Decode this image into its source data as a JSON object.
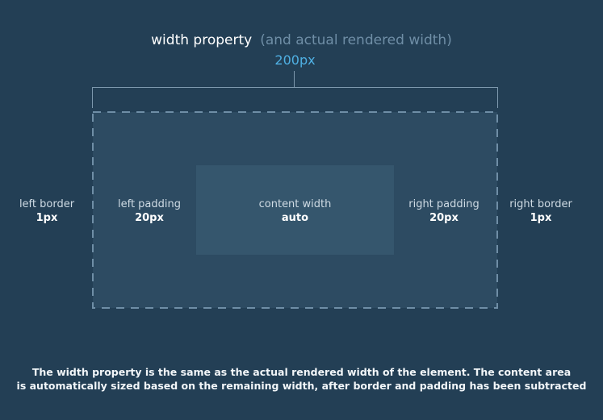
{
  "title": {
    "main": "width property",
    "sub": "(and actual rendered width)",
    "value": "200px"
  },
  "labels": {
    "left_border": {
      "name": "left border",
      "value": "1px"
    },
    "left_padding": {
      "name": "left padding",
      "value": "20px"
    },
    "content": {
      "name": "content width",
      "value": "auto"
    },
    "right_padding": {
      "name": "right padding",
      "value": "20px"
    },
    "right_border": {
      "name": "right border",
      "value": "1px"
    }
  },
  "caption": {
    "line1": "The width property is the same as the actual rendered width of the element. The content area",
    "line2": "is automatically sized based on the remaining width, after border and padding has been subtracted"
  },
  "colors": {
    "background": "#233f55",
    "padding_area": "#2d4b62",
    "content_area": "#35566d",
    "accent": "#4fb0e3",
    "border_dash": "#6f8ea6"
  }
}
